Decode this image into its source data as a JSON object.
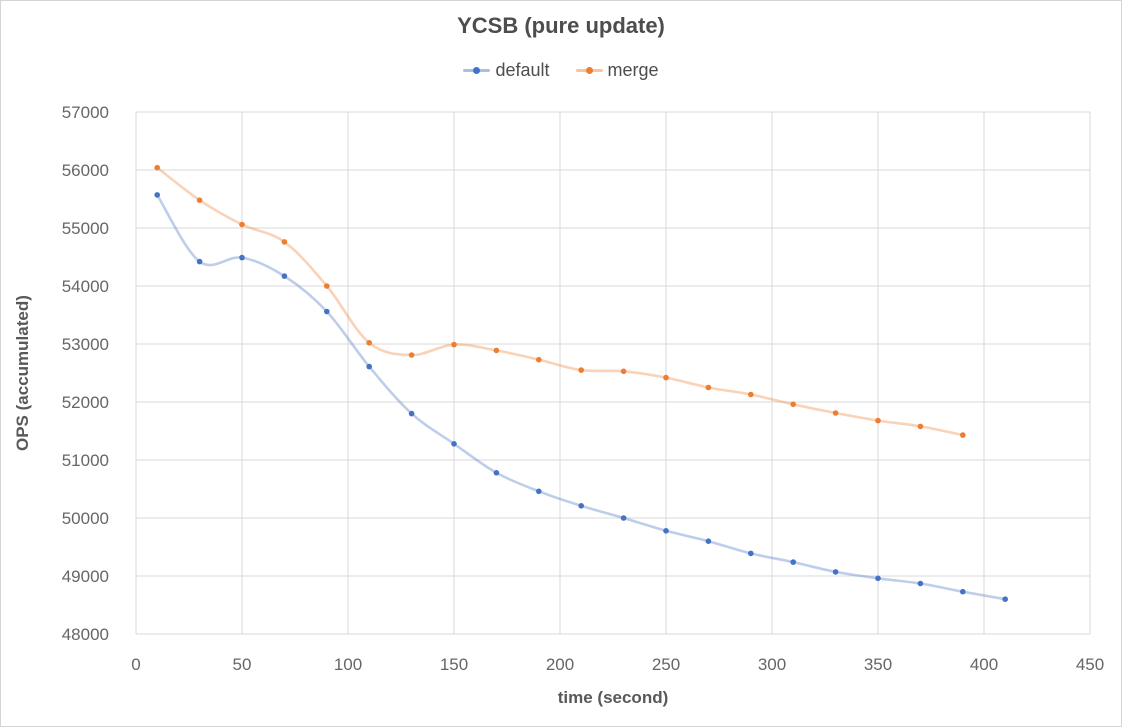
{
  "page": {
    "background": "#FFFFFF",
    "border_color": "#D5D5D5"
  },
  "chart_data": {
    "type": "line",
    "title": "YCSB (pure update)",
    "xlabel": "time (second)",
    "ylabel": "OPS (accumulated)",
    "x": [
      10,
      30,
      50,
      70,
      90,
      110,
      130,
      150,
      170,
      190,
      210,
      230,
      250,
      270,
      290,
      310,
      330,
      350,
      370,
      390,
      410
    ],
    "series": [
      {
        "name": "default",
        "color": "#4472C4",
        "values": [
          55570,
          54420,
          54490,
          54170,
          53560,
          52610,
          51800,
          51280,
          50780,
          50460,
          50210,
          50000,
          49780,
          49600,
          49390,
          49240,
          49070,
          48960,
          48870,
          48730,
          48600
        ]
      },
      {
        "name": "merge",
        "color": "#ED7D31",
        "values": [
          56040,
          55480,
          55060,
          54760,
          54000,
          53020,
          52810,
          52990,
          52890,
          52730,
          52550,
          52530,
          52420,
          52250,
          52130,
          51960,
          51810,
          51680,
          51580,
          51430,
          null
        ]
      }
    ],
    "xlim": [
      0,
      450
    ],
    "ylim": [
      48000,
      57000
    ],
    "xticks": [
      0,
      50,
      100,
      150,
      200,
      250,
      300,
      350,
      400,
      450
    ],
    "yticks": [
      48000,
      49000,
      50000,
      51000,
      52000,
      53000,
      54000,
      55000,
      56000,
      57000
    ],
    "grid": true,
    "smooth": true,
    "legend_position": "top",
    "grid_color": "#D9D9D9",
    "tick_color": "#666666",
    "title_color": "#4D4D4D",
    "axis_title_color": "#595959",
    "line_opacity": 0.35,
    "line_width": 2.6,
    "marker_radius": 2.8
  }
}
